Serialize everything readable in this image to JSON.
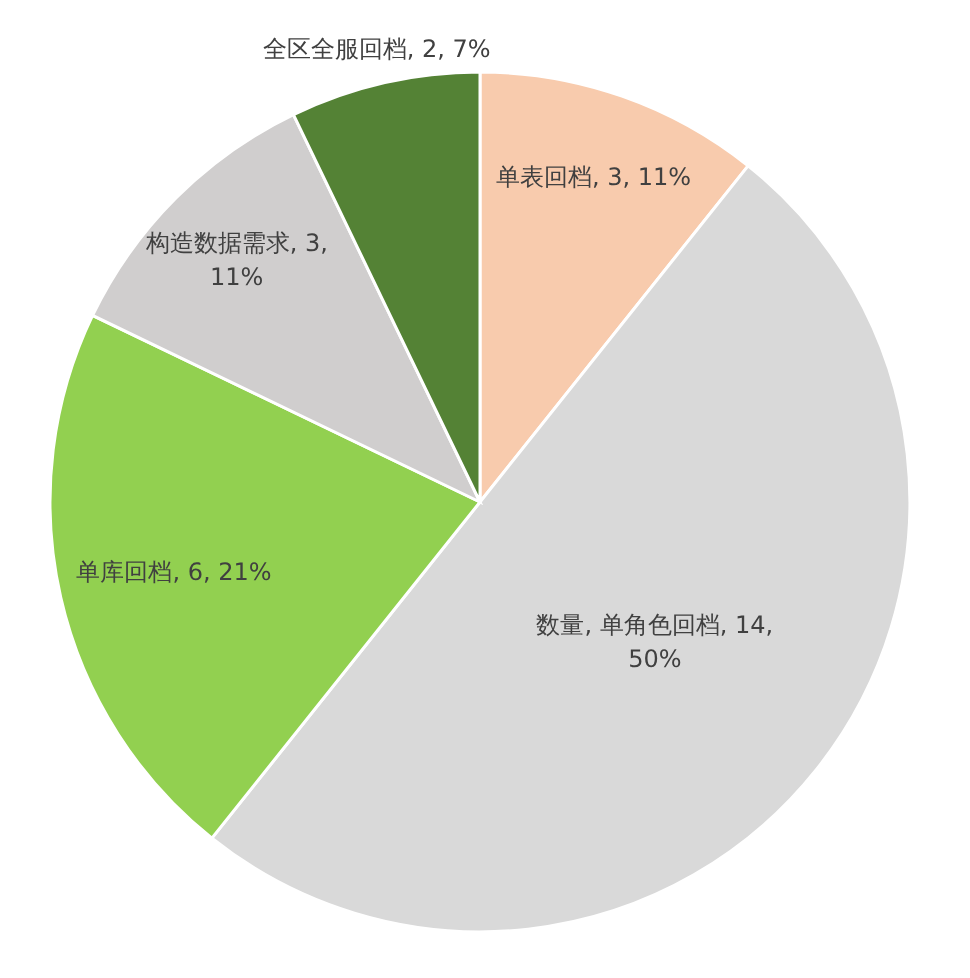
{
  "chart_data": {
    "type": "pie",
    "categories": [
      "单表回档",
      "数量, 单角色回档",
      "单库回档",
      "构造数据需求",
      "全区全服回档"
    ],
    "values": [
      3,
      14,
      6,
      3,
      2
    ],
    "colors": [
      "#f8cbad",
      "#d9d9d9",
      "#92d050",
      "#d0cece",
      "#548235"
    ],
    "value_labels": [
      ", 3, 11%",
      ", 14, 50%",
      ", 6, 21%",
      ", 3, 11%",
      ", 2, 7%"
    ]
  }
}
